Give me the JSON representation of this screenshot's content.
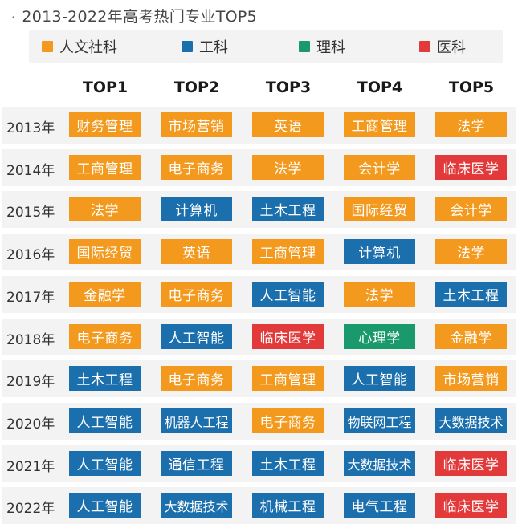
{
  "chart_data": {
    "type": "table",
    "title": "2013-2022年高考热门专业TOP5",
    "legend": [
      {
        "key": "humanities",
        "label": "人文社科",
        "color": "#f39a1e"
      },
      {
        "key": "engineering",
        "label": "工科",
        "color": "#1b6fad"
      },
      {
        "key": "science",
        "label": "理科",
        "color": "#1a9a6c"
      },
      {
        "key": "medicine",
        "label": "医科",
        "color": "#e23a3a"
      }
    ],
    "columns": [
      "TOP1",
      "TOP2",
      "TOP3",
      "TOP4",
      "TOP5"
    ],
    "rows": [
      {
        "year": "2013年",
        "cells": [
          {
            "label": "财务管理",
            "cat": "humanities"
          },
          {
            "label": "市场营销",
            "cat": "humanities"
          },
          {
            "label": "英语",
            "cat": "humanities"
          },
          {
            "label": "工商管理",
            "cat": "humanities"
          },
          {
            "label": "法学",
            "cat": "humanities"
          }
        ]
      },
      {
        "year": "2014年",
        "cells": [
          {
            "label": "工商管理",
            "cat": "humanities"
          },
          {
            "label": "电子商务",
            "cat": "humanities"
          },
          {
            "label": "法学",
            "cat": "humanities"
          },
          {
            "label": "会计学",
            "cat": "humanities"
          },
          {
            "label": "临床医学",
            "cat": "medicine"
          }
        ]
      },
      {
        "year": "2015年",
        "cells": [
          {
            "label": "法学",
            "cat": "humanities"
          },
          {
            "label": "计算机",
            "cat": "engineering"
          },
          {
            "label": "土木工程",
            "cat": "engineering"
          },
          {
            "label": "国际经贸",
            "cat": "humanities"
          },
          {
            "label": "会计学",
            "cat": "humanities"
          }
        ]
      },
      {
        "year": "2016年",
        "cells": [
          {
            "label": "国际经贸",
            "cat": "humanities"
          },
          {
            "label": "英语",
            "cat": "humanities"
          },
          {
            "label": "工商管理",
            "cat": "humanities"
          },
          {
            "label": "计算机",
            "cat": "engineering"
          },
          {
            "label": "法学",
            "cat": "humanities"
          }
        ]
      },
      {
        "year": "2017年",
        "cells": [
          {
            "label": "金融学",
            "cat": "humanities"
          },
          {
            "label": "电子商务",
            "cat": "humanities"
          },
          {
            "label": "人工智能",
            "cat": "engineering"
          },
          {
            "label": "法学",
            "cat": "humanities"
          },
          {
            "label": "土木工程",
            "cat": "engineering"
          }
        ]
      },
      {
        "year": "2018年",
        "cells": [
          {
            "label": "电子商务",
            "cat": "humanities"
          },
          {
            "label": "人工智能",
            "cat": "engineering"
          },
          {
            "label": "临床医学",
            "cat": "medicine"
          },
          {
            "label": "心理学",
            "cat": "science"
          },
          {
            "label": "金融学",
            "cat": "humanities"
          }
        ]
      },
      {
        "year": "2019年",
        "cells": [
          {
            "label": "土木工程",
            "cat": "engineering"
          },
          {
            "label": "电子商务",
            "cat": "humanities"
          },
          {
            "label": "工商管理",
            "cat": "humanities"
          },
          {
            "label": "人工智能",
            "cat": "engineering"
          },
          {
            "label": "市场营销",
            "cat": "humanities"
          }
        ]
      },
      {
        "year": "2020年",
        "cells": [
          {
            "label": "人工智能",
            "cat": "engineering"
          },
          {
            "label": "机器人工程",
            "cat": "engineering"
          },
          {
            "label": "电子商务",
            "cat": "humanities"
          },
          {
            "label": "物联网工程",
            "cat": "engineering"
          },
          {
            "label": "大数据技术",
            "cat": "engineering"
          }
        ]
      },
      {
        "year": "2021年",
        "cells": [
          {
            "label": "人工智能",
            "cat": "engineering"
          },
          {
            "label": "通信工程",
            "cat": "engineering"
          },
          {
            "label": "土木工程",
            "cat": "engineering"
          },
          {
            "label": "大数据技术",
            "cat": "engineering"
          },
          {
            "label": "临床医学",
            "cat": "medicine"
          }
        ]
      },
      {
        "year": "2022年",
        "cells": [
          {
            "label": "人工智能",
            "cat": "engineering"
          },
          {
            "label": "大数据技术",
            "cat": "engineering"
          },
          {
            "label": "机械工程",
            "cat": "engineering"
          },
          {
            "label": "电气工程",
            "cat": "engineering"
          },
          {
            "label": "临床医学",
            "cat": "medicine"
          }
        ]
      }
    ]
  }
}
